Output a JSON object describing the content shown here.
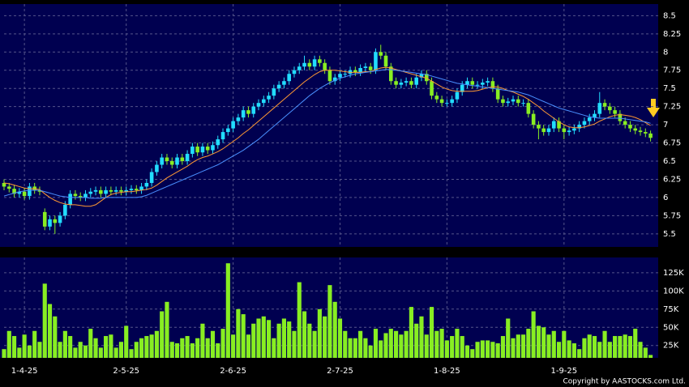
{
  "chart_data": [
    {
      "type": "candlestick",
      "open": [
        6.2,
        6.15,
        6.12,
        6.05,
        6.08,
        6.02,
        6.15,
        6.1,
        5.8,
        5.6,
        5.7,
        5.65,
        5.75,
        5.9,
        6.05,
        6.02,
        6,
        6.05,
        6.08,
        6.1,
        6.05,
        6.1,
        6.08,
        6.1,
        6.08,
        6.1,
        6.12,
        6.1,
        6.15,
        6.2,
        6.35,
        6.45,
        6.55,
        6.5,
        6.45,
        6.55,
        6.5,
        6.6,
        6.7,
        6.62,
        6.7,
        6.65,
        6.72,
        6.8,
        6.9,
        6.95,
        7.05,
        7.1,
        7.2,
        7.15,
        7.25,
        7.3,
        7.35,
        7.4,
        7.5,
        7.55,
        7.6,
        7.7,
        7.75,
        7.8,
        7.85,
        7.8,
        7.9,
        7.85,
        7.75,
        7.6,
        7.65,
        7.7,
        7.7,
        7.75,
        7.72,
        7.78,
        7.8,
        7.75,
        8,
        7.95,
        7.8,
        7.6,
        7.55,
        7.58,
        7.6,
        7.55,
        7.65,
        7.7,
        7.6,
        7.4,
        7.35,
        7.3,
        7.3,
        7.35,
        7.45,
        7.55,
        7.6,
        7.55,
        7.55,
        7.58,
        7.6,
        7.5,
        7.35,
        7.3,
        7.32,
        7.35,
        7.3,
        7.3,
        7.15,
        7,
        6.95,
        6.9,
        6.95,
        7.05,
        6.95,
        6.9,
        6.92,
        6.95,
        7,
        7.05,
        7.1,
        7.15,
        7.3,
        7.25,
        7.2,
        7.15,
        7.05,
        7,
        6.95,
        6.92,
        6.9,
        6.88
      ],
      "high": [
        6.25,
        6.2,
        6.17,
        6.13,
        6.13,
        6.2,
        6.2,
        6.15,
        5.85,
        5.75,
        5.75,
        5.8,
        5.95,
        6.1,
        6.1,
        6.07,
        6.1,
        6.13,
        6.15,
        6.15,
        6.15,
        6.15,
        6.15,
        6.15,
        6.15,
        6.17,
        6.17,
        6.2,
        6.25,
        6.4,
        6.5,
        6.6,
        6.6,
        6.55,
        6.6,
        6.6,
        6.65,
        6.75,
        6.75,
        6.75,
        6.75,
        6.77,
        6.85,
        6.95,
        7,
        7.1,
        7.15,
        7.25,
        7.25,
        7.3,
        7.35,
        7.4,
        7.45,
        7.55,
        7.6,
        7.65,
        7.75,
        7.8,
        7.85,
        7.95,
        7.9,
        7.95,
        7.95,
        7.9,
        7.8,
        7.7,
        7.75,
        7.75,
        7.8,
        7.8,
        7.83,
        7.85,
        7.85,
        8.05,
        8.1,
        8,
        7.85,
        7.65,
        7.63,
        7.65,
        7.65,
        7.7,
        7.75,
        7.75,
        7.65,
        7.45,
        7.4,
        7.35,
        7.4,
        7.5,
        7.6,
        7.65,
        7.65,
        7.6,
        7.63,
        7.65,
        7.65,
        7.55,
        7.4,
        7.37,
        7.4,
        7.4,
        7.35,
        7.35,
        7.2,
        7.05,
        7,
        7,
        7.1,
        7.1,
        7,
        6.97,
        7,
        7.05,
        7.1,
        7.15,
        7.2,
        7.45,
        7.35,
        7.3,
        7.25,
        7.2,
        7.1,
        7.05,
        7,
        6.97,
        6.95,
        6.92
      ],
      "low": [
        6.1,
        6.07,
        6,
        6,
        5.97,
        5.97,
        6.05,
        6.03,
        5.55,
        5.55,
        5.5,
        5.6,
        5.7,
        5.85,
        5.97,
        5.95,
        5.95,
        6,
        6.03,
        6,
        6,
        6.03,
        6.03,
        6.03,
        6.03,
        6.05,
        6.05,
        6.05,
        6.1,
        6.15,
        6.3,
        6.4,
        6.45,
        6.4,
        6.4,
        6.45,
        6.45,
        6.55,
        6.57,
        6.57,
        6.6,
        6.6,
        6.67,
        6.75,
        6.85,
        6.9,
        7,
        7.05,
        7.1,
        7.1,
        7.2,
        7.25,
        7.3,
        7.35,
        7.45,
        7.5,
        7.55,
        7.65,
        7.7,
        7.75,
        7.75,
        7.75,
        7.8,
        7.7,
        7.55,
        7.55,
        7.6,
        7.65,
        7.65,
        7.67,
        7.67,
        7.73,
        7.7,
        7.7,
        7.9,
        7.75,
        7.55,
        7.5,
        7.5,
        7.53,
        7.5,
        7.5,
        7.6,
        7.55,
        7.35,
        7.3,
        7.25,
        7.25,
        7.25,
        7.3,
        7.4,
        7.5,
        7.5,
        7.5,
        7.5,
        7.53,
        7.45,
        7.3,
        7.25,
        7.25,
        7.27,
        7.25,
        7.25,
        7.1,
        6.95,
        6.8,
        6.85,
        6.85,
        6.9,
        6.9,
        6.8,
        6.85,
        6.87,
        6.9,
        6.95,
        7,
        7.05,
        7.1,
        7.2,
        7.15,
        7.1,
        7,
        6.95,
        6.9,
        6.87,
        6.85,
        6.83,
        6.77
      ],
      "close": [
        6.15,
        6.12,
        6.05,
        6.08,
        6.02,
        6.15,
        6.1,
        6.08,
        5.6,
        5.7,
        5.65,
        5.75,
        5.9,
        6.05,
        6.02,
        6,
        6.05,
        6.08,
        6.1,
        6.05,
        6.1,
        6.08,
        6.1,
        6.08,
        6.1,
        6.12,
        6.1,
        6.15,
        6.2,
        6.35,
        6.45,
        6.55,
        6.5,
        6.45,
        6.55,
        6.5,
        6.6,
        6.7,
        6.62,
        6.7,
        6.65,
        6.72,
        6.8,
        6.9,
        6.95,
        7.05,
        7.1,
        7.2,
        7.15,
        7.25,
        7.3,
        7.35,
        7.4,
        7.5,
        7.55,
        7.6,
        7.7,
        7.75,
        7.8,
        7.85,
        7.8,
        7.9,
        7.85,
        7.75,
        7.6,
        7.65,
        7.7,
        7.7,
        7.75,
        7.72,
        7.78,
        7.8,
        7.75,
        8,
        7.95,
        7.8,
        7.6,
        7.55,
        7.58,
        7.6,
        7.55,
        7.65,
        7.7,
        7.6,
        7.4,
        7.35,
        7.3,
        7.3,
        7.35,
        7.45,
        7.55,
        7.6,
        7.55,
        7.55,
        7.58,
        7.6,
        7.5,
        7.35,
        7.3,
        7.32,
        7.35,
        7.3,
        7.3,
        7.15,
        7,
        6.95,
        6.9,
        6.95,
        7.05,
        6.95,
        6.9,
        6.92,
        6.95,
        7,
        7.05,
        7.1,
        7.15,
        7.3,
        7.25,
        7.2,
        7.15,
        7.05,
        7,
        6.95,
        6.92,
        6.9,
        6.88,
        6.82
      ],
      "up_color": "#22ddff",
      "down_color": "#88ee22",
      "lines": [
        {
          "color": "#ff9933",
          "values": [
            6.2,
            6.19,
            6.17,
            6.15,
            6.13,
            6.12,
            6.12,
            6.11,
            6.05,
            6,
            5.96,
            5.93,
            5.91,
            5.9,
            5.9,
            5.89,
            5.88,
            5.88,
            5.9,
            5.95,
            6,
            6.04,
            6.06,
            6.07,
            6.08,
            6.08,
            6.09,
            6.1,
            6.11,
            6.13,
            6.17,
            6.22,
            6.27,
            6.31,
            6.35,
            6.39,
            6.43,
            6.48,
            6.52,
            6.55,
            6.57,
            6.6,
            6.63,
            6.67,
            6.72,
            6.77,
            6.82,
            6.88,
            6.93,
            6.99,
            7.05,
            7.11,
            7.17,
            7.23,
            7.29,
            7.35,
            7.41,
            7.47,
            7.53,
            7.59,
            7.64,
            7.69,
            7.73,
            7.75,
            7.75,
            7.75,
            7.74,
            7.73,
            7.72,
            7.72,
            7.72,
            7.73,
            7.73,
            7.76,
            7.78,
            7.79,
            7.78,
            7.76,
            7.74,
            7.72,
            7.7,
            7.68,
            7.66,
            7.64,
            7.6,
            7.56,
            7.52,
            7.49,
            7.47,
            7.46,
            7.46,
            7.46,
            7.46,
            7.47,
            7.49,
            7.51,
            7.52,
            7.52,
            7.5,
            7.47,
            7.45,
            7.42,
            7.39,
            7.35,
            7.3,
            7.25,
            7.19,
            7.14,
            7.09,
            7.04,
            7,
            6.97,
            6.96,
            6.96,
            6.97,
            6.99,
            7.01,
            7.05,
            7.08,
            7.11,
            7.13,
            7.14,
            7.13,
            7.12,
            7.1,
            7.07,
            7.03,
            6.99
          ]
        },
        {
          "color": "#4a90ff",
          "values": [
            6.02,
            6.04,
            6.06,
            6.08,
            6.09,
            6.1,
            6.1,
            6.1,
            6.08,
            6.06,
            6.04,
            6.02,
            6.01,
            6,
            6,
            6,
            6,
            5.99,
            5.99,
            5.99,
            6,
            6,
            6,
            6,
            6,
            6,
            6,
            6.01,
            6.03,
            6.06,
            6.09,
            6.12,
            6.15,
            6.18,
            6.21,
            6.24,
            6.27,
            6.3,
            6.33,
            6.36,
            6.39,
            6.42,
            6.45,
            6.49,
            6.53,
            6.57,
            6.61,
            6.65,
            6.7,
            6.75,
            6.8,
            6.86,
            6.92,
            6.98,
            7.04,
            7.1,
            7.16,
            7.22,
            7.28,
            7.34,
            7.4,
            7.45,
            7.5,
            7.54,
            7.58,
            7.61,
            7.64,
            7.66,
            7.68,
            7.7,
            7.71,
            7.72,
            7.73,
            7.74,
            7.75,
            7.76,
            7.76,
            7.75,
            7.74,
            7.73,
            7.72,
            7.71,
            7.7,
            7.69,
            7.67,
            7.65,
            7.63,
            7.61,
            7.59,
            7.57,
            7.56,
            7.55,
            7.54,
            7.53,
            7.52,
            7.51,
            7.5,
            7.49,
            7.48,
            7.47,
            7.46,
            7.45,
            7.43,
            7.41,
            7.38,
            7.35,
            7.32,
            7.29,
            7.26,
            7.23,
            7.21,
            7.19,
            7.17,
            7.15,
            7.13,
            7.11,
            7.1,
            7.09,
            7.09,
            7.09,
            7.09,
            7.09,
            7.08,
            7.07,
            7.06,
            7.05,
            7.04,
            7.02
          ]
        }
      ],
      "xlim": [
        0,
        128.5
      ],
      "ylim": [
        5.32,
        8.66
      ],
      "yticks": [
        8.5,
        8.25,
        8,
        7.75,
        7.5,
        7.25,
        7,
        6.75,
        6.5,
        6.25,
        6,
        5.75,
        5.5
      ],
      "grid": true
    },
    {
      "type": "bar",
      "values": [
        20000,
        45000,
        38000,
        22000,
        40000,
        25000,
        45000,
        30000,
        110000,
        82000,
        65000,
        30000,
        45000,
        38000,
        22000,
        30000,
        25000,
        48000,
        35000,
        22000,
        38000,
        40000,
        22000,
        30000,
        52000,
        20000,
        30000,
        35000,
        38000,
        40000,
        45000,
        72000,
        85000,
        30000,
        28000,
        35000,
        38000,
        28000,
        35000,
        55000,
        35000,
        45000,
        28000,
        48000,
        138000,
        40000,
        75000,
        68000,
        40000,
        55000,
        62000,
        65000,
        60000,
        35000,
        55000,
        62000,
        58000,
        45000,
        112000,
        72000,
        55000,
        45000,
        75000,
        65000,
        108000,
        85000,
        62000,
        45000,
        35000,
        35000,
        45000,
        35000,
        25000,
        48000,
        32000,
        42000,
        48000,
        45000,
        40000,
        45000,
        78000,
        55000,
        65000,
        40000,
        78000,
        45000,
        48000,
        32000,
        38000,
        48000,
        38000,
        25000,
        20000,
        30000,
        32000,
        32000,
        30000,
        28000,
        38000,
        62000,
        35000,
        40000,
        40000,
        48000,
        72000,
        52000,
        50000,
        40000,
        45000,
        30000,
        45000,
        32000,
        28000,
        20000,
        35000,
        40000,
        38000,
        30000,
        45000,
        30000,
        38000,
        38000,
        40000,
        38000,
        48000,
        30000,
        22000,
        12000
      ],
      "color": "#88ee22",
      "xlim": [
        0,
        128.5
      ],
      "ylim": [
        8000,
        146000
      ],
      "yticks": [
        {
          "value": 125000,
          "label": "125K"
        },
        {
          "value": 100000,
          "label": "100K"
        },
        {
          "value": 75000,
          "label": "75K"
        },
        {
          "value": 50000,
          "label": "50K"
        },
        {
          "value": 25000,
          "label": "25K"
        }
      ],
      "xticks": [
        {
          "value": 4,
          "label": "1-4-25"
        },
        {
          "value": 24,
          "label": "2-5-25"
        },
        {
          "value": 45,
          "label": "2-6-25"
        },
        {
          "value": 66,
          "label": "2-7-25"
        },
        {
          "value": 87,
          "label": "1-8-25"
        },
        {
          "value": 110,
          "label": "1-9-25"
        }
      ],
      "grid": true
    }
  ],
  "copyright": "Copyright by AASTOCKS.com Ltd."
}
